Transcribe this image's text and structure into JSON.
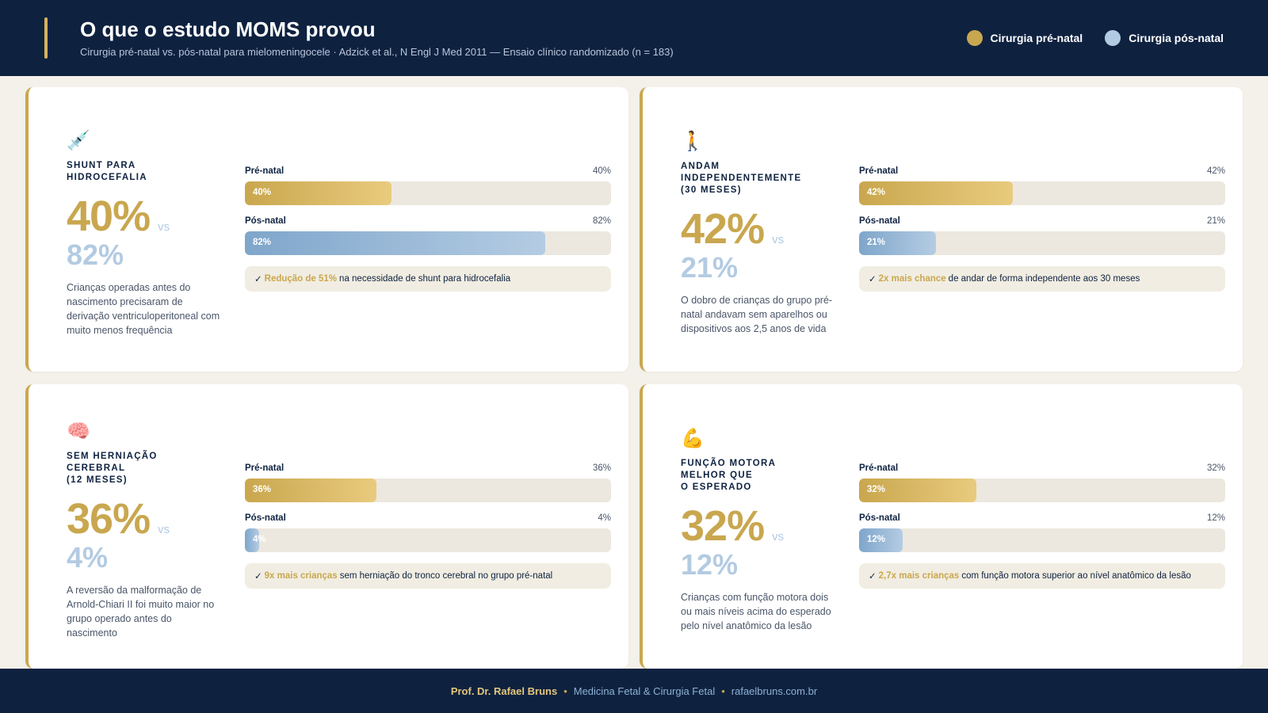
{
  "header": {
    "title": "O que o estudo MOMS provou",
    "subtitle": "Cirurgia pré-natal vs. pós-natal para mielomeningocele  ·  Adzick et al., N Engl J Med 2011 — Ensaio clínico randomizado (n = 183)"
  },
  "legend": [
    {
      "label": "Cirurgia pré-natal",
      "color": "#c9a74f"
    },
    {
      "label": "Cirurgia pós-natal",
      "color": "#b3cbe2"
    }
  ],
  "labels": {
    "pre": "Pré-natal",
    "post": "Pós-natal",
    "vs": "vs",
    "check": "✓"
  },
  "cards": [
    {
      "icon": "💉",
      "icon_name": "syringe-icon",
      "title": "SHUNT PARA\nHIDROCEFALIA",
      "pre": "40%",
      "post": "82%",
      "pre_value": 40,
      "post_value": 82,
      "desc": "Crianças operadas antes do nascimento precisaram de derivação ventriculoperitoneal com muito menos frequência",
      "note_hl": "Redução de 51%",
      "note": "na necessidade de shunt para hidrocefalia"
    },
    {
      "icon": "🚶",
      "icon_name": "walking-person-icon",
      "title": "ANDAM\nINDEPENDENTEMENTE\n(30 MESES)",
      "pre": "42%",
      "post": "21%",
      "pre_value": 42,
      "post_value": 21,
      "desc": "O dobro de crianças do grupo pré-natal andavam sem aparelhos ou dispositivos aos 2,5 anos de vida",
      "note_hl": "2x mais chance",
      "note": "de andar de forma independente aos 30 meses"
    },
    {
      "icon": "🧠",
      "icon_name": "brain-icon",
      "title": "SEM HERNIAÇÃO\nCEREBRAL\n(12 MESES)",
      "pre": "36%",
      "post": "4%",
      "pre_value": 36,
      "post_value": 4,
      "desc": "A reversão da malformação de Arnold-Chiari II foi muito maior no grupo operado antes do nascimento",
      "note_hl": "9x mais crianças",
      "note": "sem herniação do tronco cerebral no grupo pré-natal"
    },
    {
      "icon": "💪",
      "icon_name": "flexed-biceps-icon",
      "title": "FUNÇÃO MOTORA\nMELHOR QUE\nO ESPERADO",
      "pre": "32%",
      "post": "12%",
      "pre_value": 32,
      "post_value": 12,
      "desc": "Crianças com função motora dois ou mais níveis acima do esperado pelo nível anatômico da lesão",
      "note_hl": "2,7x mais crianças",
      "note": "com função motora superior ao nível anatômico da lesão"
    }
  ],
  "footer": {
    "author": "Prof. Dr. Rafael Bruns",
    "sep": "•",
    "specialty": "Medicina Fetal & Cirurgia Fetal",
    "site": "rafaelbruns.com.br"
  }
}
